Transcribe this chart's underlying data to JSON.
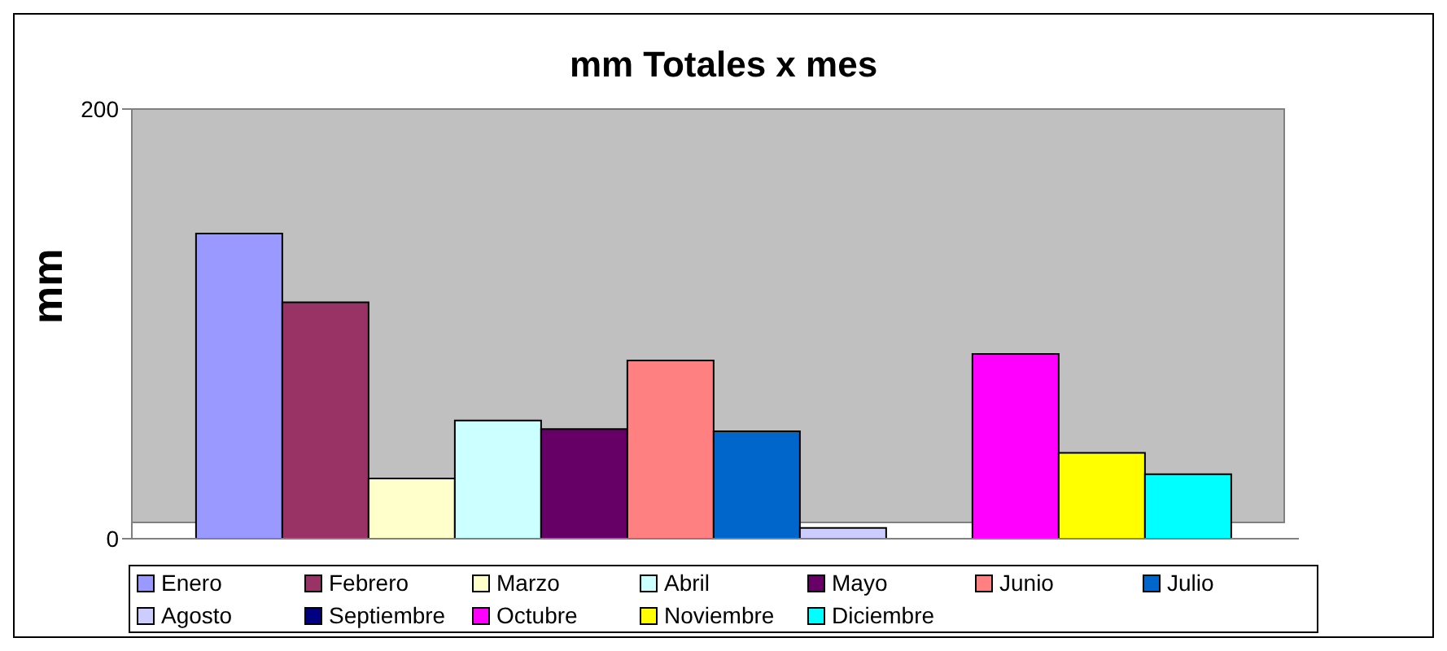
{
  "chart_data": {
    "type": "bar",
    "title": "mm Totales x mes",
    "ylabel": "mm",
    "categories": [
      null
    ],
    "series": [
      {
        "name": "Enero",
        "color": "#9999ff",
        "values": [
          142
        ]
      },
      {
        "name": "Febrero",
        "color": "#993366",
        "values": [
          110
        ]
      },
      {
        "name": "Marzo",
        "color": "#ffffcc",
        "values": [
          28
        ]
      },
      {
        "name": "Abril",
        "color": "#ccffff",
        "values": [
          55
        ]
      },
      {
        "name": "Mayo",
        "color": "#660066",
        "values": [
          51
        ]
      },
      {
        "name": "Junio",
        "color": "#ff8080",
        "values": [
          83
        ]
      },
      {
        "name": "Julio",
        "color": "#0066cc",
        "values": [
          50
        ]
      },
      {
        "name": "Agosto",
        "color": "#ccccff",
        "values": [
          5
        ]
      },
      {
        "name": "Septiembre",
        "color": "#000080",
        "values": [
          0
        ]
      },
      {
        "name": "Octubre",
        "color": "#ff00ff",
        "values": [
          86
        ]
      },
      {
        "name": "Noviembre",
        "color": "#ffff00",
        "values": [
          40
        ]
      },
      {
        "name": "Diciembre",
        "color": "#00ffff",
        "values": [
          30
        ]
      }
    ],
    "ylim": [
      0,
      200
    ],
    "yticks": [
      0,
      200
    ],
    "grid": false,
    "legend": "bottom"
  }
}
